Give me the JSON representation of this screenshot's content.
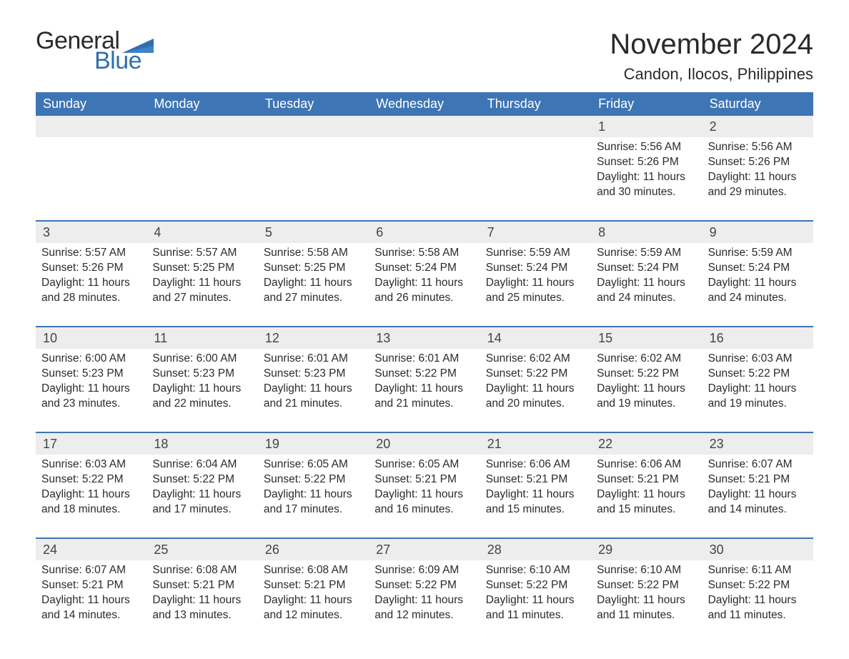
{
  "logo": {
    "text1": "General",
    "text2": "Blue",
    "accent_color": "#2f6fb0",
    "text_color": "#2a2a2a"
  },
  "header": {
    "title": "November 2024",
    "location": "Candon, Ilocos, Philippines",
    "title_fontsize": 40,
    "location_fontsize": 22
  },
  "styling": {
    "header_row_bg": "#3e75b4",
    "header_row_fg": "#ffffff",
    "week_divider_color": "#3e75b4",
    "daynum_bg": "#ededed",
    "body_bg": "#ffffff",
    "text_color": "#2b2b2b",
    "body_fontsize": 15.5,
    "dow_fontsize": 18
  },
  "days_of_week": [
    "Sunday",
    "Monday",
    "Tuesday",
    "Wednesday",
    "Thursday",
    "Friday",
    "Saturday"
  ],
  "labels": {
    "sunrise": "Sunrise:",
    "sunset": "Sunset:",
    "daylight": "Daylight:"
  },
  "weeks": [
    [
      null,
      null,
      null,
      null,
      null,
      {
        "n": "1",
        "sunrise": "5:56 AM",
        "sunset": "5:26 PM",
        "daylight": "11 hours and 30 minutes."
      },
      {
        "n": "2",
        "sunrise": "5:56 AM",
        "sunset": "5:26 PM",
        "daylight": "11 hours and 29 minutes."
      }
    ],
    [
      {
        "n": "3",
        "sunrise": "5:57 AM",
        "sunset": "5:26 PM",
        "daylight": "11 hours and 28 minutes."
      },
      {
        "n": "4",
        "sunrise": "5:57 AM",
        "sunset": "5:25 PM",
        "daylight": "11 hours and 27 minutes."
      },
      {
        "n": "5",
        "sunrise": "5:58 AM",
        "sunset": "5:25 PM",
        "daylight": "11 hours and 27 minutes."
      },
      {
        "n": "6",
        "sunrise": "5:58 AM",
        "sunset": "5:24 PM",
        "daylight": "11 hours and 26 minutes."
      },
      {
        "n": "7",
        "sunrise": "5:59 AM",
        "sunset": "5:24 PM",
        "daylight": "11 hours and 25 minutes."
      },
      {
        "n": "8",
        "sunrise": "5:59 AM",
        "sunset": "5:24 PM",
        "daylight": "11 hours and 24 minutes."
      },
      {
        "n": "9",
        "sunrise": "5:59 AM",
        "sunset": "5:24 PM",
        "daylight": "11 hours and 24 minutes."
      }
    ],
    [
      {
        "n": "10",
        "sunrise": "6:00 AM",
        "sunset": "5:23 PM",
        "daylight": "11 hours and 23 minutes."
      },
      {
        "n": "11",
        "sunrise": "6:00 AM",
        "sunset": "5:23 PM",
        "daylight": "11 hours and 22 minutes."
      },
      {
        "n": "12",
        "sunrise": "6:01 AM",
        "sunset": "5:23 PM",
        "daylight": "11 hours and 21 minutes."
      },
      {
        "n": "13",
        "sunrise": "6:01 AM",
        "sunset": "5:22 PM",
        "daylight": "11 hours and 21 minutes."
      },
      {
        "n": "14",
        "sunrise": "6:02 AM",
        "sunset": "5:22 PM",
        "daylight": "11 hours and 20 minutes."
      },
      {
        "n": "15",
        "sunrise": "6:02 AM",
        "sunset": "5:22 PM",
        "daylight": "11 hours and 19 minutes."
      },
      {
        "n": "16",
        "sunrise": "6:03 AM",
        "sunset": "5:22 PM",
        "daylight": "11 hours and 19 minutes."
      }
    ],
    [
      {
        "n": "17",
        "sunrise": "6:03 AM",
        "sunset": "5:22 PM",
        "daylight": "11 hours and 18 minutes."
      },
      {
        "n": "18",
        "sunrise": "6:04 AM",
        "sunset": "5:22 PM",
        "daylight": "11 hours and 17 minutes."
      },
      {
        "n": "19",
        "sunrise": "6:05 AM",
        "sunset": "5:22 PM",
        "daylight": "11 hours and 17 minutes."
      },
      {
        "n": "20",
        "sunrise": "6:05 AM",
        "sunset": "5:21 PM",
        "daylight": "11 hours and 16 minutes."
      },
      {
        "n": "21",
        "sunrise": "6:06 AM",
        "sunset": "5:21 PM",
        "daylight": "11 hours and 15 minutes."
      },
      {
        "n": "22",
        "sunrise": "6:06 AM",
        "sunset": "5:21 PM",
        "daylight": "11 hours and 15 minutes."
      },
      {
        "n": "23",
        "sunrise": "6:07 AM",
        "sunset": "5:21 PM",
        "daylight": "11 hours and 14 minutes."
      }
    ],
    [
      {
        "n": "24",
        "sunrise": "6:07 AM",
        "sunset": "5:21 PM",
        "daylight": "11 hours and 14 minutes."
      },
      {
        "n": "25",
        "sunrise": "6:08 AM",
        "sunset": "5:21 PM",
        "daylight": "11 hours and 13 minutes."
      },
      {
        "n": "26",
        "sunrise": "6:08 AM",
        "sunset": "5:21 PM",
        "daylight": "11 hours and 12 minutes."
      },
      {
        "n": "27",
        "sunrise": "6:09 AM",
        "sunset": "5:22 PM",
        "daylight": "11 hours and 12 minutes."
      },
      {
        "n": "28",
        "sunrise": "6:10 AM",
        "sunset": "5:22 PM",
        "daylight": "11 hours and 11 minutes."
      },
      {
        "n": "29",
        "sunrise": "6:10 AM",
        "sunset": "5:22 PM",
        "daylight": "11 hours and 11 minutes."
      },
      {
        "n": "30",
        "sunrise": "6:11 AM",
        "sunset": "5:22 PM",
        "daylight": "11 hours and 11 minutes."
      }
    ]
  ]
}
